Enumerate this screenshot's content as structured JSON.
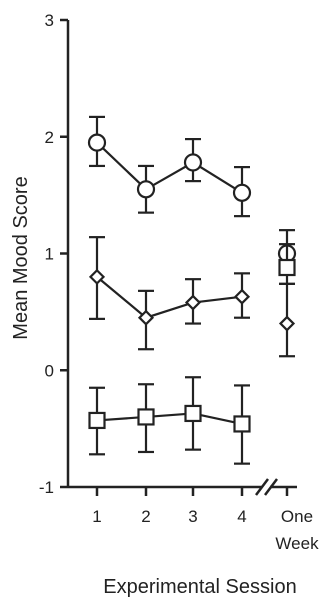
{
  "chart_data": {
    "type": "line",
    "title": "",
    "xlabel": "Experimental Session",
    "ylabel": "Mean Mood Score",
    "categories": [
      "1",
      "2",
      "3",
      "4",
      "One Week"
    ],
    "axis_break_after_category": "4",
    "ylim": [
      -1,
      3
    ],
    "yticks": [
      -1,
      0,
      1,
      2,
      3
    ],
    "grid": false,
    "legend": "none",
    "series": [
      {
        "marker": "circle",
        "values": [
          1.95,
          1.55,
          1.78,
          1.52,
          1.0
        ],
        "err_low": [
          1.75,
          1.35,
          1.62,
          1.32,
          0.88
        ],
        "err_high": [
          2.17,
          1.75,
          1.98,
          1.74,
          1.2
        ],
        "connected_categories": [
          "1",
          "2",
          "3",
          "4"
        ]
      },
      {
        "marker": "diamond",
        "values": [
          0.8,
          0.45,
          0.58,
          0.63,
          0.4
        ],
        "err_low": [
          0.44,
          0.18,
          0.4,
          0.45,
          0.12
        ],
        "err_high": [
          1.14,
          0.68,
          0.78,
          0.83,
          0.74
        ],
        "connected_categories": [
          "1",
          "2",
          "3",
          "4"
        ]
      },
      {
        "marker": "square",
        "values": [
          -0.43,
          -0.4,
          -0.37,
          -0.46,
          0.88
        ],
        "err_low": [
          -0.72,
          -0.7,
          -0.68,
          -0.8,
          0.74
        ],
        "err_high": [
          -0.15,
          -0.12,
          -0.06,
          -0.13,
          1.08
        ],
        "connected_categories": [
          "1",
          "2",
          "3",
          "4"
        ]
      }
    ]
  }
}
